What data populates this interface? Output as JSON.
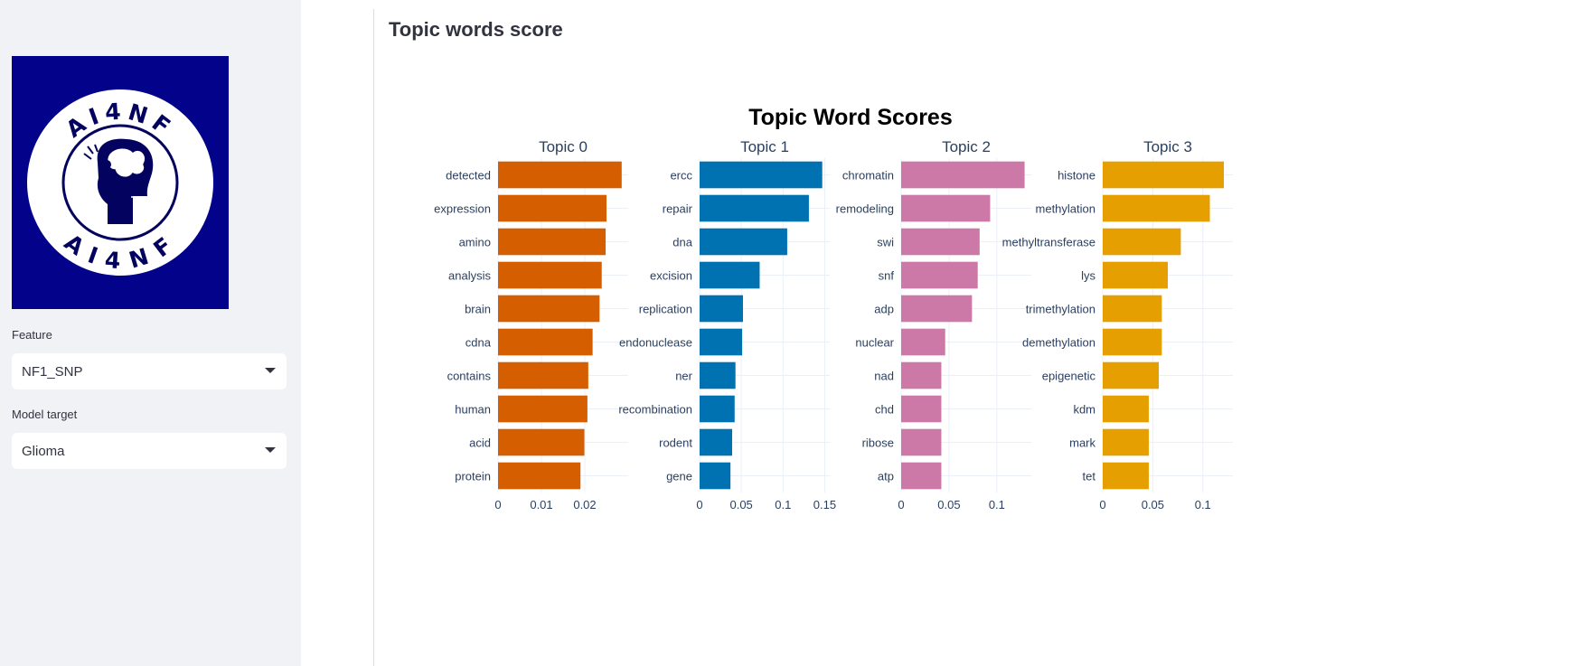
{
  "sidebar": {
    "logo": {
      "text_top": "AI4NF",
      "text_bottom": "AI4NF",
      "icon": "brain-head-icon"
    },
    "feature": {
      "label": "Feature",
      "value": "NF1_SNP"
    },
    "model_target": {
      "label": "Model target",
      "value": "Glioma"
    }
  },
  "main": {
    "title": "Topic words score"
  },
  "colors": {
    "topic0": "#d55e00",
    "topic1": "#0072b2",
    "topic2": "#cc79a7",
    "topic3": "#e69f00"
  },
  "chart_data": {
    "type": "bar",
    "orientation": "horizontal",
    "title": "Topic Word Scores",
    "panels": [
      {
        "name": "Topic 0",
        "color": "#d55e00",
        "words": [
          "detected",
          "expression",
          "amino",
          "analysis",
          "brain",
          "cdna",
          "contains",
          "human",
          "acid",
          "protein"
        ],
        "values": [
          0.0285,
          0.025,
          0.0248,
          0.0239,
          0.0234,
          0.0218,
          0.0208,
          0.0206,
          0.0199,
          0.019
        ],
        "xlim": [
          0,
          0.03
        ],
        "ticks": [
          0,
          0.01,
          0.02
        ],
        "tick_labels": [
          "0",
          "0.01",
          "0.02"
        ]
      },
      {
        "name": "Topic 1",
        "color": "#0072b2",
        "words": [
          "ercc",
          "repair",
          "dna",
          "excision",
          "replication",
          "endonuclease",
          "ner",
          "recombination",
          "rodent",
          "gene"
        ],
        "values": [
          0.147,
          0.131,
          0.105,
          0.072,
          0.052,
          0.051,
          0.043,
          0.042,
          0.039,
          0.037
        ],
        "xlim": [
          0,
          0.156
        ],
        "ticks": [
          0,
          0.05,
          0.1,
          0.15
        ],
        "tick_labels": [
          "0",
          "0.05",
          "0.1",
          "0.15"
        ]
      },
      {
        "name": "Topic 2",
        "color": "#cc79a7",
        "words": [
          "chromatin",
          "remodeling",
          "swi",
          "snf",
          "adp",
          "nuclear",
          "nad",
          "chd",
          "ribose",
          "atp"
        ],
        "values": [
          0.129,
          0.093,
          0.082,
          0.08,
          0.074,
          0.046,
          0.042,
          0.042,
          0.042,
          0.042
        ],
        "xlim": [
          0,
          0.136
        ],
        "ticks": [
          0,
          0.05,
          0.1
        ],
        "tick_labels": [
          "0",
          "0.05",
          "0.1"
        ]
      },
      {
        "name": "Topic 3",
        "color": "#e69f00",
        "words": [
          "histone",
          "methylation",
          "methyltransferase",
          "lys",
          "trimethylation",
          "demethylation",
          "epigenetic",
          "kdm",
          "mark",
          "tet"
        ],
        "values": [
          0.121,
          0.107,
          0.078,
          0.065,
          0.059,
          0.059,
          0.056,
          0.046,
          0.046,
          0.046
        ],
        "xlim": [
          0,
          0.13
        ],
        "ticks": [
          0,
          0.05,
          0.1
        ],
        "tick_labels": [
          "0",
          "0.05",
          "0.1"
        ]
      }
    ],
    "grid": true,
    "legend": "none"
  }
}
